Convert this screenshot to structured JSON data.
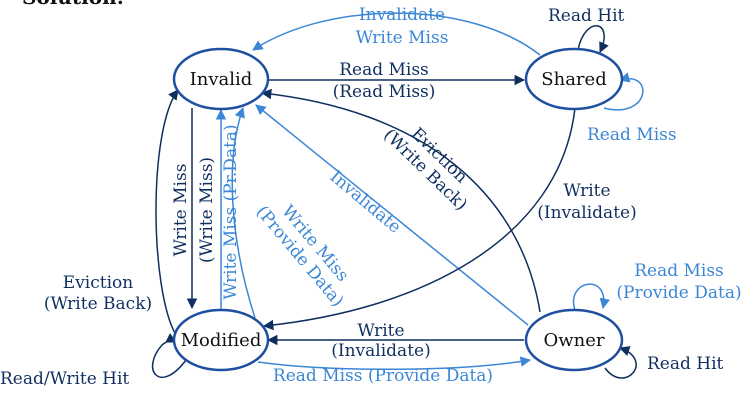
{
  "header": {
    "cut_text": "Solution:"
  },
  "states": {
    "invalid": "Invalid",
    "shared": "Shared",
    "modified": "Modified",
    "owner": "Owner"
  },
  "edges": {
    "shared_to_invalid": {
      "line1": "Invalidate",
      "line2": "Write Miss"
    },
    "shared_read_hit": "Read Hit",
    "shared_read_miss": "Read Miss",
    "invalid_to_shared": {
      "line1": "Read Miss",
      "line2": "(Read Miss)"
    },
    "owner_to_invalid_eviction": {
      "line1": "Eviction",
      "line2": "(Write Back)"
    },
    "owner_to_invalid_invalidate": "Invalidate",
    "shared_to_modified": {
      "line1": "Write",
      "line2": "(Invalidate)"
    },
    "invalid_to_modified": {
      "line1": "Write Miss",
      "line2": "(Write Miss)"
    },
    "invalid_to_modified_pr": "Write Miss (Pr.Data)",
    "modified_to_invalid_provide": {
      "line1": "Write Miss",
      "line2": "(Provide Data)"
    },
    "modified_to_invalid_eviction": {
      "line1": "Eviction",
      "line2": "(Write Back)"
    },
    "modified_self": "Read/Write Hit",
    "owner_to_modified": {
      "line1": "Write",
      "line2": "(Invalidate)"
    },
    "modified_to_owner": "Read Miss (Provide Data)",
    "owner_read_miss": {
      "line1": "Read Miss",
      "line2": "(Provide Data)"
    },
    "owner_read_hit": "Read Hit"
  },
  "colors": {
    "dark": "#0f2f5f",
    "blue": "#3b87d6",
    "state_border": "#1f4fa0"
  }
}
